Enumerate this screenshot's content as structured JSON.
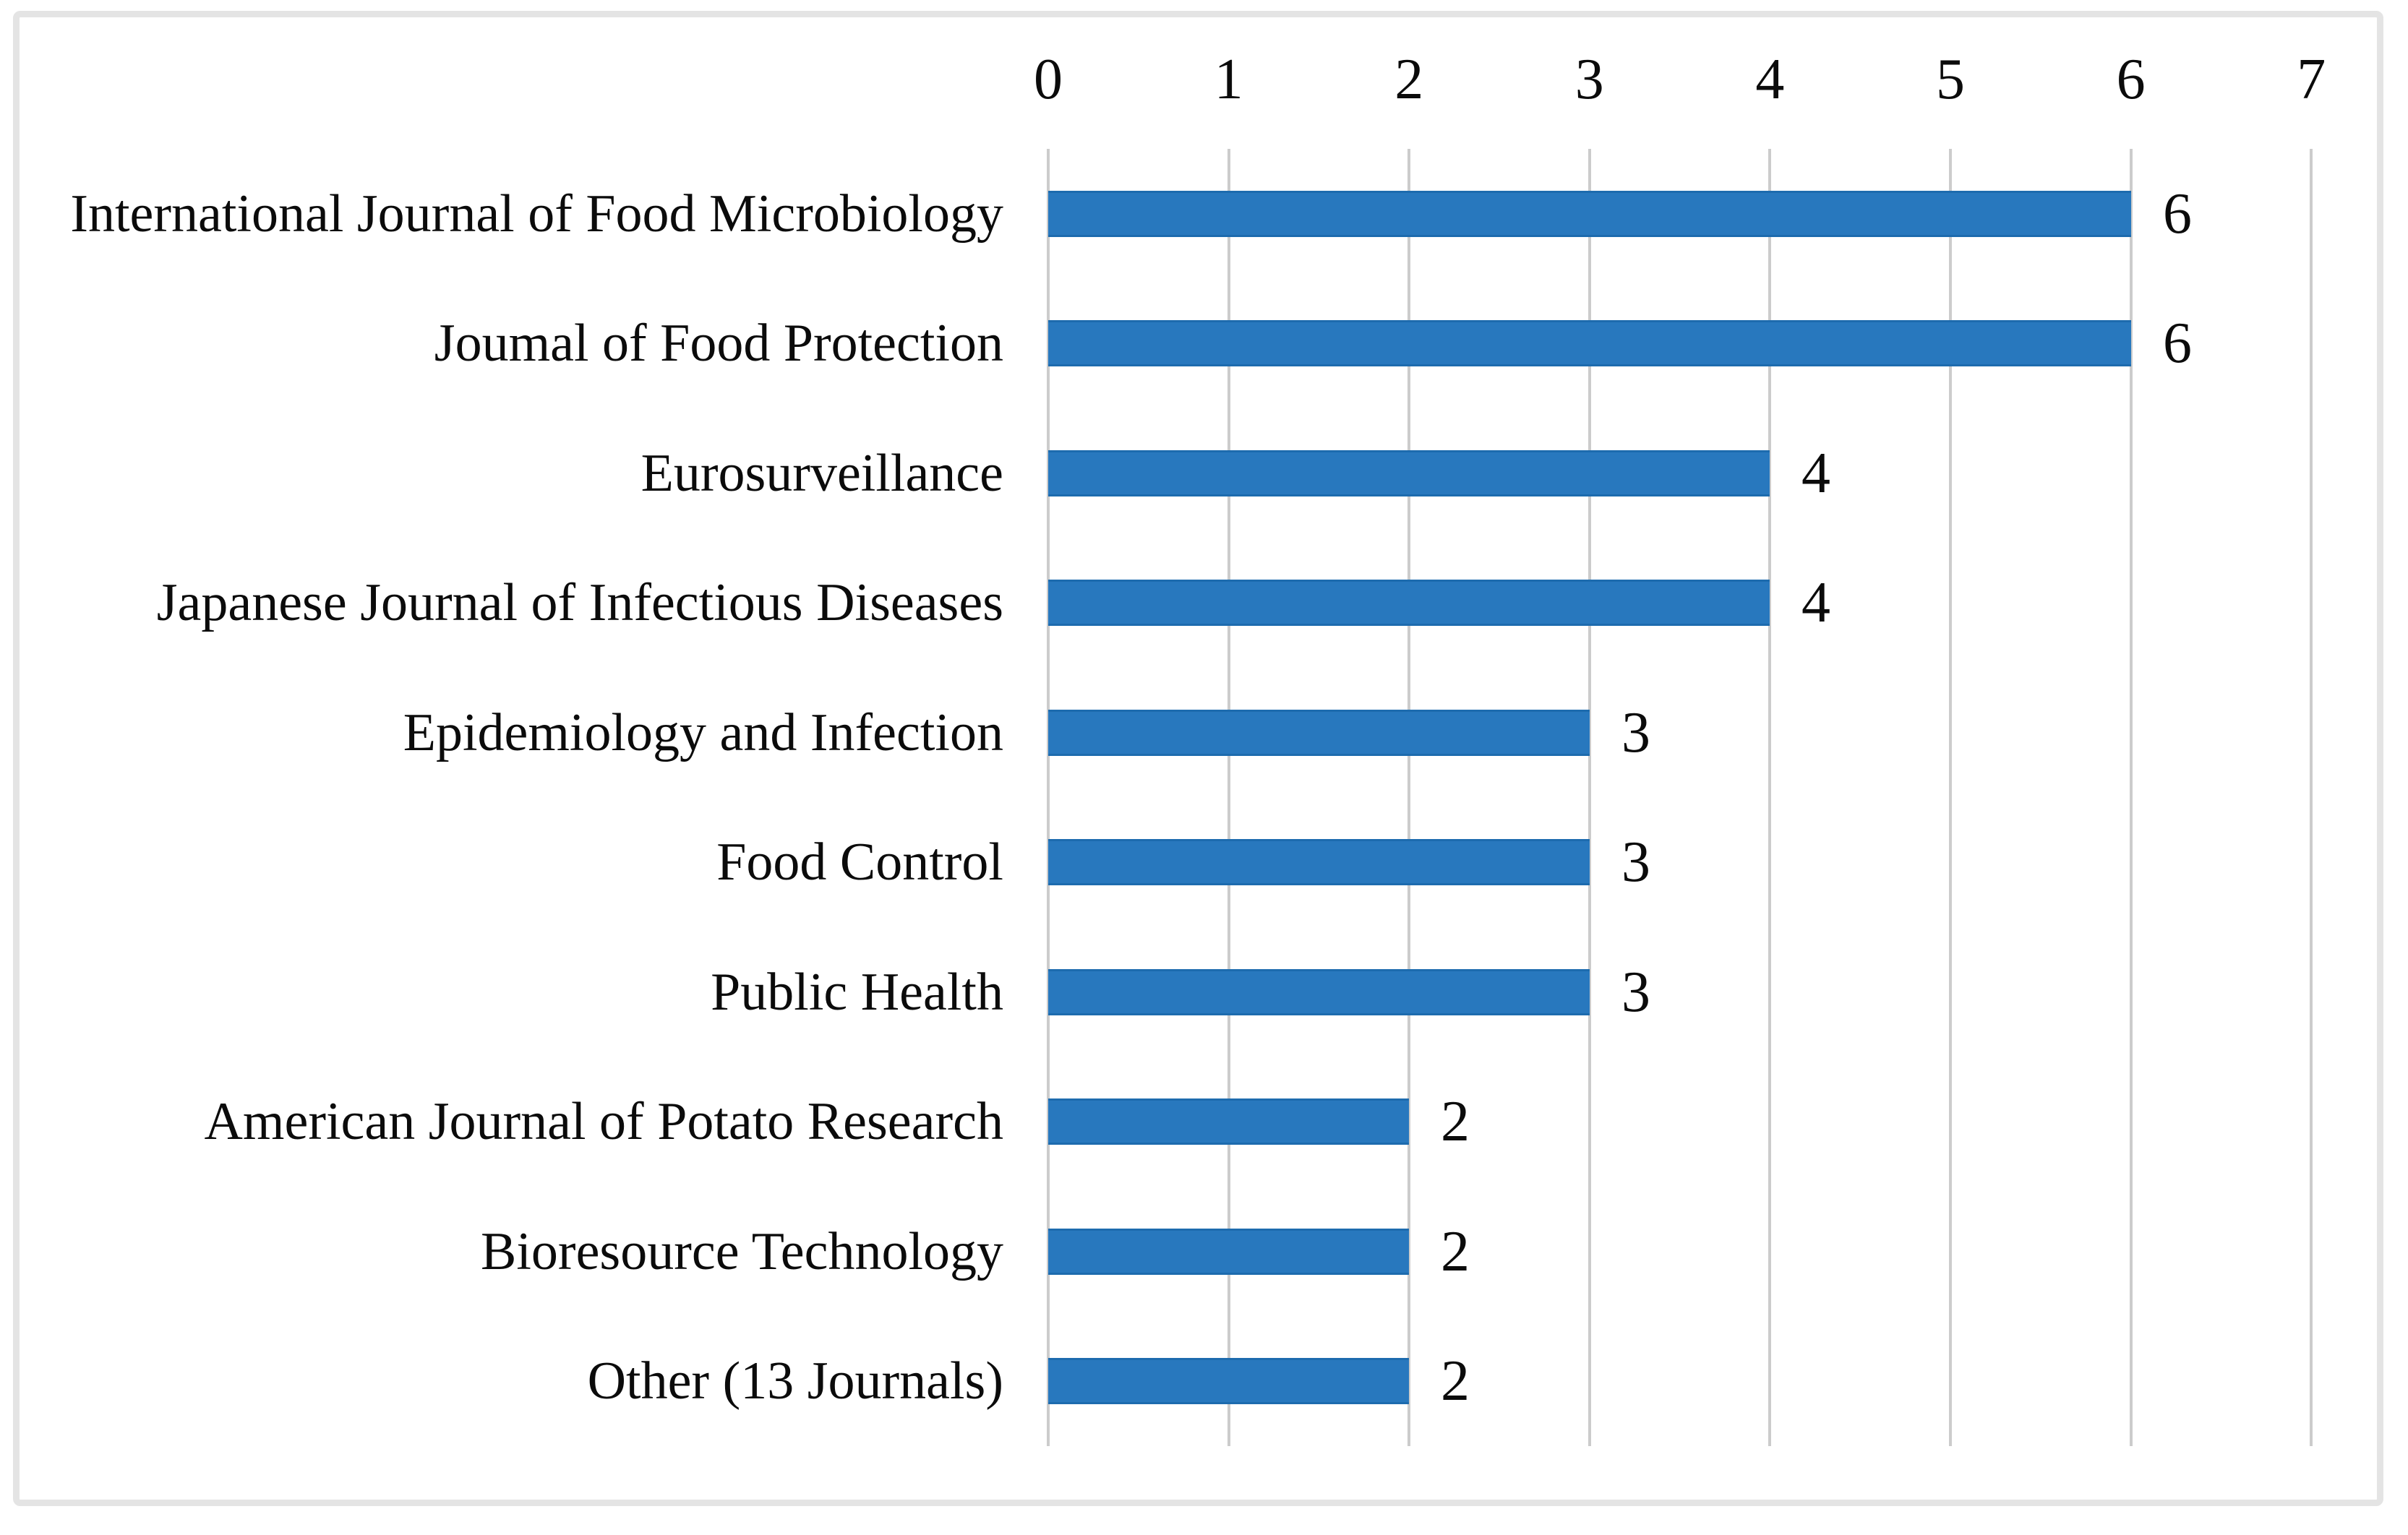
{
  "figure": {
    "background_color": "#ffffff",
    "border_color": "#e4e4e4"
  },
  "chart_data": {
    "type": "bar",
    "orientation": "horizontal",
    "title": "",
    "xlabel": "",
    "ylabel": "",
    "axis_position": "top",
    "xlim": [
      0,
      7
    ],
    "x_ticks": [
      "0",
      "1",
      "2",
      "3",
      "4",
      "5",
      "6",
      "7"
    ],
    "grid": true,
    "legend": false,
    "categories": [
      "International Journal of Food Microbiology",
      "Joumal of Food Protection",
      "Eurosurveillance",
      "Japanese Journal of Infectious Diseases",
      "Epidemiology and Infection",
      "Food Control",
      "Public Health",
      "American Journal of Potato Research",
      "Bioresource Technology",
      "Other (13 Journals)"
    ],
    "values": [
      6,
      6,
      4,
      4,
      3,
      3,
      3,
      2,
      2,
      2
    ],
    "value_labels": [
      "6",
      "6",
      "4",
      "4",
      "3",
      "3",
      "3",
      "2",
      "2",
      "2"
    ],
    "bar_color": "#2878be",
    "bar_edge_color": "#1d6bae",
    "gridline_color": "#cccccc",
    "text_color": "#0b0b0b"
  }
}
